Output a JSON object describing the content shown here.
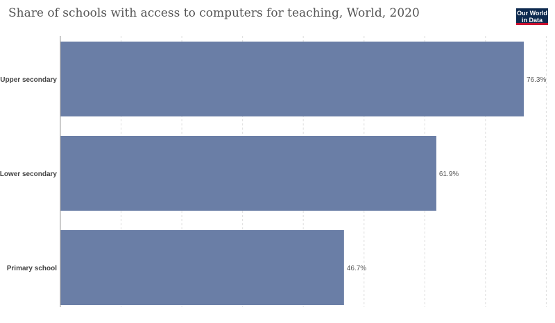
{
  "title": "Share of schools with access to computers for teaching, World, 2020",
  "logo": {
    "line1": "Our World",
    "line2": "in Data"
  },
  "colors": {
    "bar": "#6a7ea6",
    "grid": "#dddddd",
    "axis": "#999999"
  },
  "chart_data": {
    "type": "bar",
    "orientation": "horizontal",
    "categories": [
      "Upper secondary",
      "Lower secondary",
      "Primary school"
    ],
    "values": [
      76.3,
      61.9,
      46.7
    ],
    "value_labels": [
      "76.3%",
      "61.9%",
      "46.7%"
    ],
    "xlim": [
      0,
      80
    ],
    "grid": true
  }
}
